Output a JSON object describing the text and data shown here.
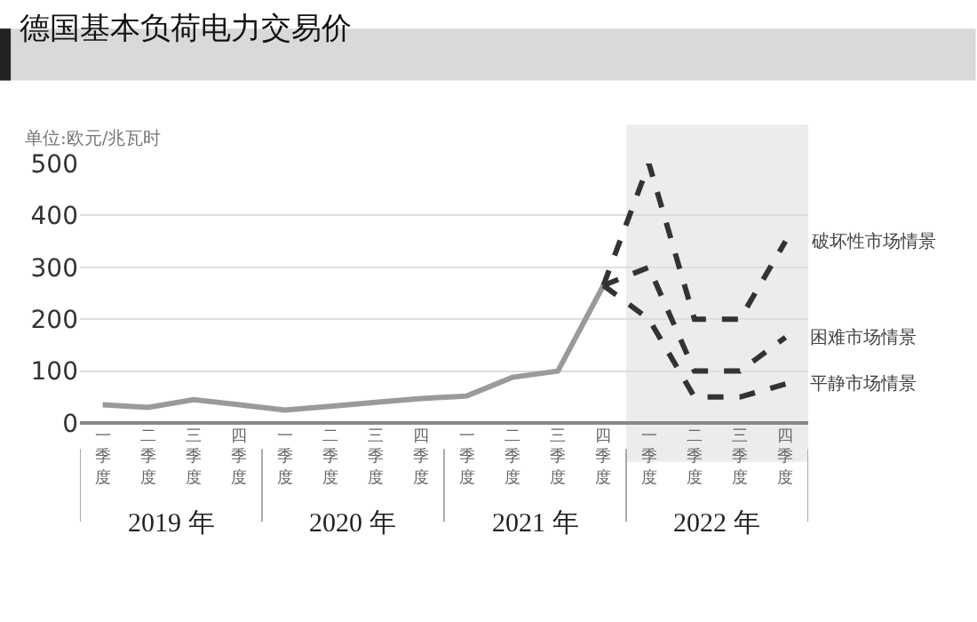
{
  "chart_data": {
    "type": "line",
    "title": "德国基本负荷电力交易价",
    "ylabel": "单位:欧元/兆瓦时",
    "categories": [
      "一季度",
      "二季度",
      "三季度",
      "四季度",
      "一季度",
      "二季度",
      "三季度",
      "四季度",
      "一季度",
      "二季度",
      "三季度",
      "四季度",
      "一季度",
      "二季度",
      "三季度",
      "四季度"
    ],
    "series": [
      {
        "color": "#9a9a9a",
        "line_style": "solid",
        "values": [
          35,
          30,
          45,
          35,
          25,
          32,
          40,
          47,
          52,
          88,
          100,
          265,
          null,
          null,
          null,
          null
        ]
      },
      {
        "name": "破坏性市场情景",
        "color": "#333333",
        "line_style": "dashed",
        "values": [
          null,
          null,
          null,
          null,
          null,
          null,
          null,
          null,
          null,
          null,
          null,
          265,
          500,
          200,
          200,
          350
        ]
      },
      {
        "name": "困难市场情景",
        "color": "#333333",
        "line_style": "dashed",
        "values": [
          null,
          null,
          null,
          null,
          null,
          null,
          null,
          null,
          null,
          null,
          null,
          265,
          300,
          100,
          100,
          165
        ]
      },
      {
        "name": "平静市场情景",
        "color": "#333333",
        "line_style": "dashed",
        "values": [
          null,
          null,
          null,
          null,
          null,
          null,
          null,
          null,
          null,
          null,
          null,
          265,
          200,
          50,
          50,
          75
        ]
      }
    ],
    "annotations": [
      "2019 年",
      "2020 年",
      "2021 年",
      "2022 年"
    ],
    "ylim": [
      0,
      500
    ],
    "yticks": [
      0,
      100,
      200,
      300,
      400,
      500
    ],
    "grid": "y",
    "legend": false,
    "marker": "none"
  }
}
